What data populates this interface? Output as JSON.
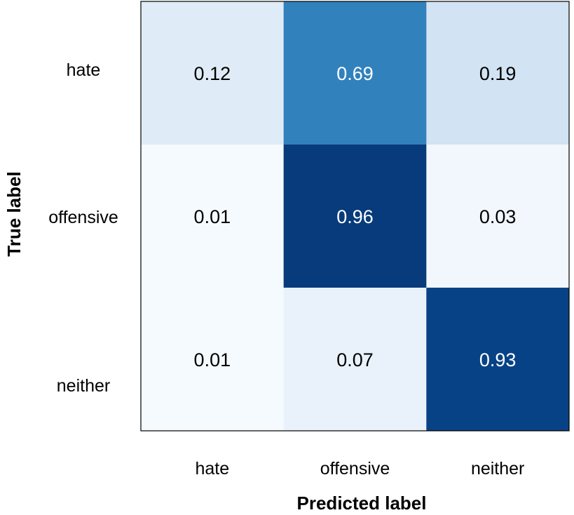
{
  "chart_data": {
    "type": "heatmap",
    "title": "",
    "xlabel": "Predicted label",
    "ylabel": "True label",
    "x_categories": [
      "hate",
      "offensive",
      "neither"
    ],
    "y_categories": [
      "hate",
      "offensive",
      "neither"
    ],
    "values": [
      [
        0.12,
        0.69,
        0.19
      ],
      [
        0.01,
        0.96,
        0.03
      ],
      [
        0.01,
        0.07,
        0.93
      ]
    ],
    "value_labels": [
      [
        "0.12",
        "0.69",
        "0.19"
      ],
      [
        "0.01",
        "0.96",
        "0.03"
      ],
      [
        "0.01",
        "0.07",
        "0.93"
      ]
    ],
    "colormap": "Blues",
    "vmin": 0,
    "vmax": 1,
    "grid": false,
    "legend": "none"
  }
}
